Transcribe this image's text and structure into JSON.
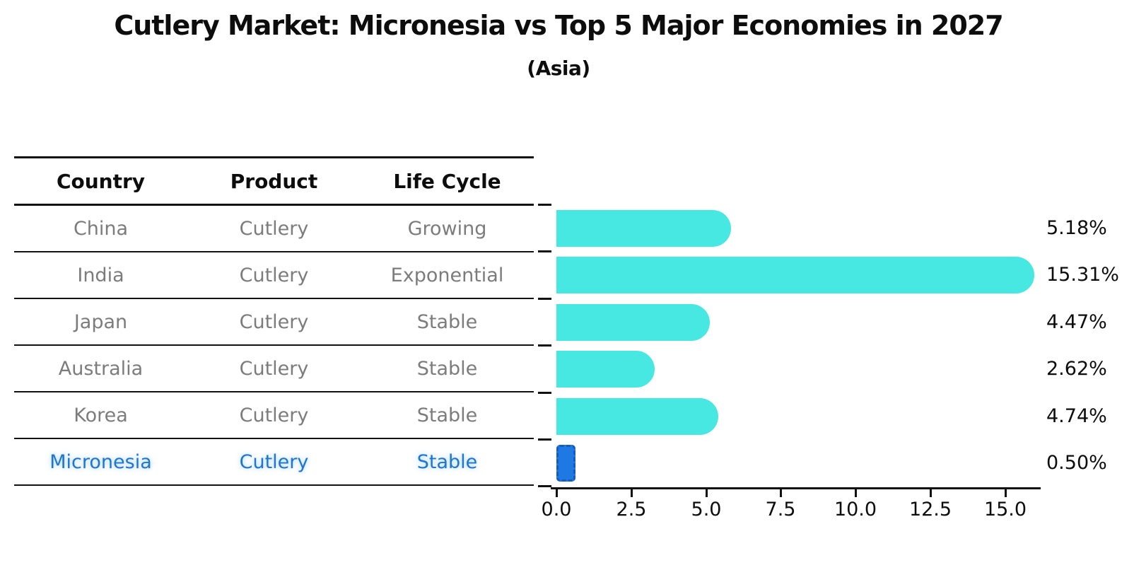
{
  "title": "Cutlery Market: Micronesia vs Top 5 Major Economies in 2027",
  "subtitle": "(Asia)",
  "table": {
    "headers": [
      "Country",
      "Product",
      "Life Cycle"
    ],
    "rows": [
      {
        "country": "China",
        "product": "Cutlery",
        "life_cycle": "Growing",
        "highlight": false
      },
      {
        "country": "India",
        "product": "Cutlery",
        "life_cycle": "Exponential",
        "highlight": false
      },
      {
        "country": "Japan",
        "product": "Cutlery",
        "life_cycle": "Stable",
        "highlight": false
      },
      {
        "country": "Australia",
        "product": "Cutlery",
        "life_cycle": "Stable",
        "highlight": false
      },
      {
        "country": "Korea",
        "product": "Cutlery",
        "life_cycle": "Stable",
        "highlight": false
      },
      {
        "country": "Micronesia",
        "product": "Cutlery",
        "life_cycle": "Stable",
        "highlight": true
      }
    ]
  },
  "chart_data": {
    "type": "bar",
    "orientation": "horizontal",
    "title": "Cutlery Market: Micronesia vs Top 5 Major Economies in 2027",
    "subtitle": "(Asia)",
    "categories": [
      "China",
      "India",
      "Japan",
      "Australia",
      "Korea",
      "Micronesia"
    ],
    "values": [
      5.18,
      15.31,
      4.47,
      2.62,
      4.74,
      0.5
    ],
    "value_labels": [
      "5.18%",
      "15.31%",
      "4.47%",
      "2.62%",
      "4.74%",
      "0.50%"
    ],
    "x_ticks": [
      "0.0",
      "2.5",
      "5.0",
      "7.5",
      "10.0",
      "12.5",
      "15.0"
    ],
    "x_tick_values": [
      0.0,
      2.5,
      5.0,
      7.5,
      10.0,
      12.5,
      15.0
    ],
    "xlim": [
      0,
      16.2
    ],
    "grid": false,
    "legend": false,
    "bar_color": "#46e8e1",
    "highlight_bar_color": "#1e79e2",
    "highlight_bar_edge_color": "#1659c0",
    "highlight_text_color": "#1f76cf",
    "highlight_index": 5
  },
  "colors": {
    "text": "#0d0d0d",
    "muted_text": "#7c7c7c",
    "accent_cyan": "#46e8e1",
    "accent_blue": "#1e79e2"
  }
}
